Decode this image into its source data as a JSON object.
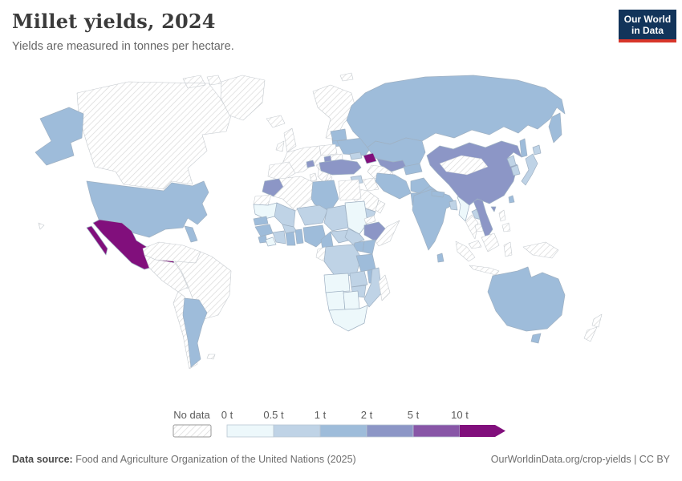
{
  "header": {
    "title": "Millet yields, 2024",
    "subtitle": "Yields are measured in tonnes per hectare."
  },
  "logo": {
    "line1": "Our World",
    "line2": "in Data",
    "bg_color": "#12345a",
    "accent_color": "#d8352a"
  },
  "legend": {
    "no_data_label": "No data",
    "ticks": [
      "0 t",
      "0.5 t",
      "1 t",
      "2 t",
      "5 t",
      "10 t"
    ],
    "bins": [
      "0-0.5",
      "0.5-1",
      "1-2",
      "2-5",
      "5-10",
      "10+"
    ]
  },
  "footer": {
    "source_label": "Data source:",
    "source_text": " Food and Agriculture Organization of the United Nations (2025)",
    "link_text": "OurWorldinData.org/crop-yields | CC BY"
  },
  "chart_data": {
    "type": "choropleth_map",
    "title": "Millet yields, 2024",
    "unit": "tonnes per hectare",
    "year": 2024,
    "legend_bins": [
      "0-0.5",
      "0.5-1",
      "1-2",
      "2-5",
      "5-10",
      "10+"
    ],
    "colors": {
      "0-0.5": "#edf8fb",
      "0.5-1": "#bfd3e6",
      "1-2": "#9ebcda",
      "2-5": "#8c96c6",
      "5-10": "#8856a7",
      "10+": "#810f7c"
    },
    "no_data_style": "white with diagonal gray hatching",
    "countries": {
      "united-states": "1-2",
      "canada": "no-data",
      "greenland": "no-data",
      "mexico": "10+",
      "central-america": "no-data",
      "cuba": "no-data",
      "hispaniola": "no-data",
      "hawaii": "no-data",
      "northern-south-america": "no-data",
      "brazil": "no-data",
      "peru": "no-data",
      "chile": "no-data",
      "argentina": "1-2",
      "falkland-islands": "no-data",
      "iceland": "no-data",
      "united-kingdom": "no-data",
      "ireland": "no-data",
      "scandinavia": "no-data",
      "svalbard": "no-data",
      "poland": "no-data",
      "western-europe": "no-data",
      "spain": "no-data",
      "italy": "no-data",
      "balkans": "no-data",
      "romania": "no-data",
      "switzerland": "2-5",
      "hungary": "2-5",
      "lithuania": "1-2",
      "belarus": "1-2",
      "ukraine": "1-2",
      "russia": "1-2",
      "kazakhstan": "1-2",
      "uzbekistan": "2-5",
      "turkmenistan": "no-data",
      "kyrgyzstan-tajikistan": "1-2",
      "georgia": "0.5-1",
      "azerbaijan": "10+",
      "turkey": "2-5",
      "syria": "0.5-1",
      "iraq": "no-data",
      "iran": "1-2",
      "afghanistan": "1-2",
      "pakistan": "1-2",
      "saudi-arabia": "no-data",
      "yemen": "0.5-1",
      "oman": "no-data",
      "india": "1-2",
      "sri-lanka": "1-2",
      "bangladesh": "0.5-1",
      "nepal": "1-2",
      "myanmar": "0-0.5",
      "thailand": "no-data",
      "laos": "0.5-1",
      "cambodia": "no-data",
      "vietnam": "2-5",
      "mongolia": "no-data",
      "china": "2-5",
      "hainan": "2-5",
      "taiwan": "1-2",
      "north-korea": "0.5-1",
      "south-korea": "0.5-1",
      "japan": "0.5-1",
      "philippines": "no-data",
      "malaysia": "no-data",
      "indonesia": "no-data",
      "new-guinea": "no-data",
      "morocco": "2-5",
      "western-sahara": "no-data",
      "algeria": "no-data",
      "tunisia": "no-data",
      "libya": "1-2",
      "egypt": "no-data",
      "mauritania": "0-0.5",
      "mali": "0.5-1",
      "niger": "0.5-1",
      "chad": "0.5-1",
      "sudan": "0-0.5",
      "eritrea": "no-data",
      "senegal": "1-2",
      "guinea": "1-2",
      "sierra-leone": "1-2",
      "liberia": "0-0.5",
      "ivory-coast": "0.5-1",
      "burkina-faso": "0.5-1",
      "ghana": "1-2",
      "togo-benin": "1-2",
      "nigeria": "1-2",
      "cameroon": "1-2",
      "central-african-republic": "0.5-1",
      "south-sudan": "0.5-1",
      "ethiopia": "2-5",
      "somalia": "no-data",
      "kenya": "1-2",
      "uganda": "1-2",
      "gabon-congo": "no-data",
      "drc": "0.5-1",
      "tanzania": "1-2",
      "angola": "0-0.5",
      "zambia": "0.5-1",
      "malawi": "1-2",
      "mozambique": "0.5-1",
      "zimbabwe": "0.5-1",
      "namibia": "0-0.5",
      "botswana": "0-0.5",
      "south-africa": "0-0.5",
      "madagascar": "no-data",
      "australia": "1-2",
      "new-zealand": "no-data"
    }
  }
}
